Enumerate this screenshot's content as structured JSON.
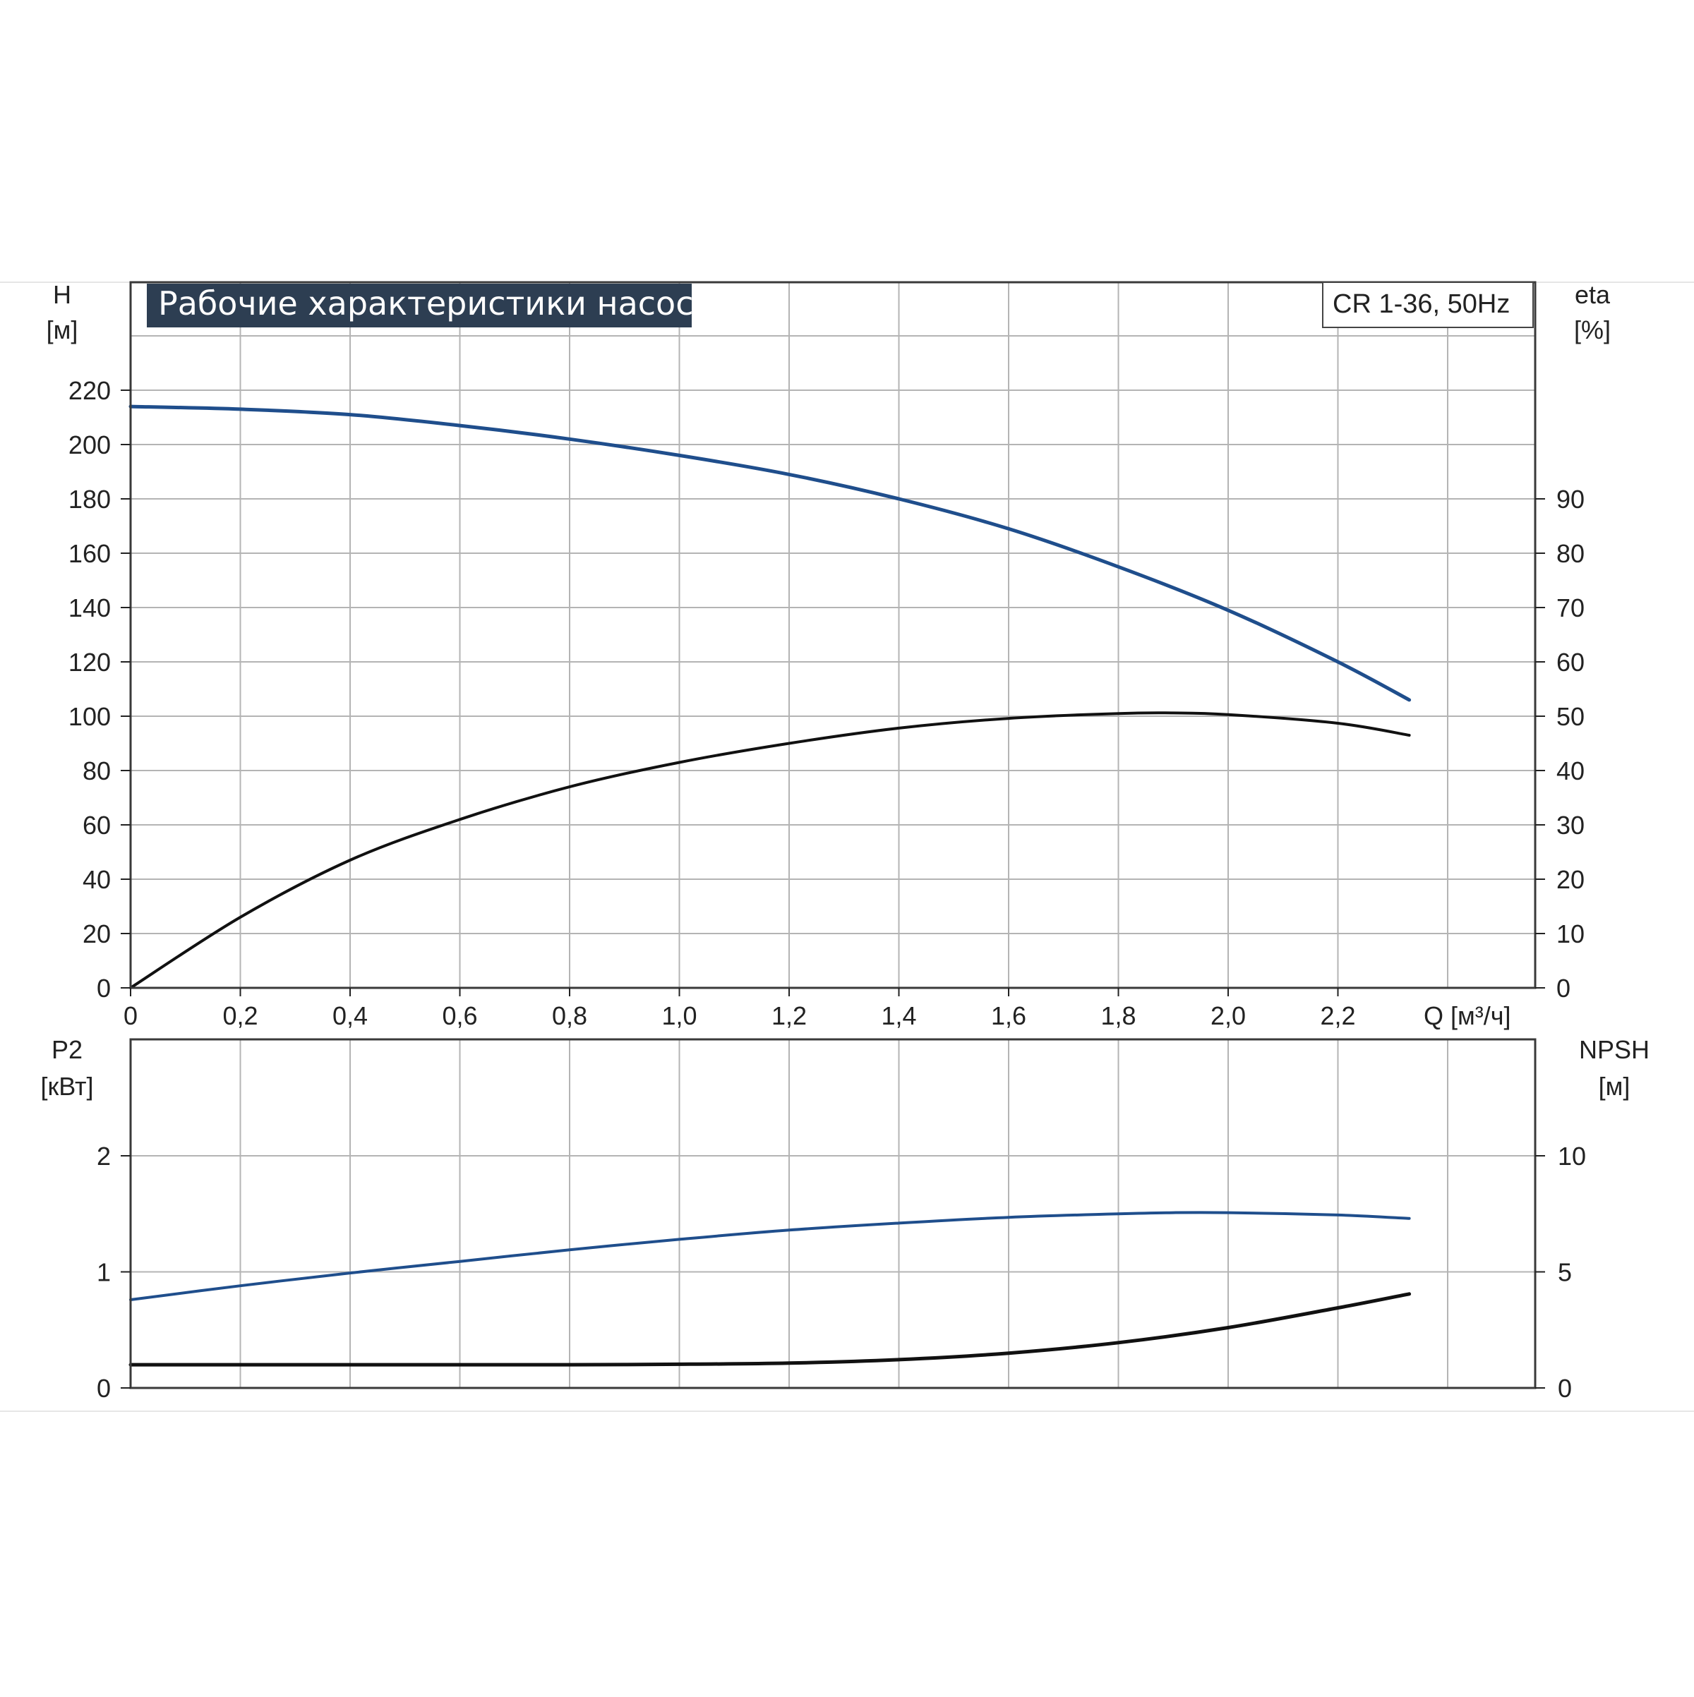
{
  "header": {
    "title": "Рабочие характеристики насоса",
    "model": "CR 1-36, 50Hz"
  },
  "colors": {
    "accent_blue": "#1f4e8c",
    "curve_black": "#111111",
    "grid": "#b4b4b4",
    "title_bg": "#2d3e52",
    "frame": "#3a3a3a"
  },
  "chart_data": [
    {
      "type": "line",
      "title": "Рабочие характеристики насоса",
      "subtitle": "CR 1-36, 50Hz",
      "xlabel": "Q [м³/ч]",
      "ylabel": "H\n[м]",
      "y2label": "eta\n[%]",
      "xlim": [
        0,
        2.56
      ],
      "ylim": [
        0,
        240
      ],
      "y2lim": [
        0,
        120
      ],
      "grid": true,
      "x_ticks": [
        "0",
        "0,2",
        "0,4",
        "0,6",
        "0,8",
        "1,0",
        "1,2",
        "1,4",
        "1,6",
        "1,8",
        "2,0",
        "2,2"
      ],
      "x_unit_label": "Q [м³/ч]",
      "y_ticks": [
        "0",
        "20",
        "40",
        "60",
        "80",
        "100",
        "120",
        "140",
        "160",
        "180",
        "200",
        "220"
      ],
      "y2_ticks": [
        "0",
        "10",
        "20",
        "30",
        "40",
        "50",
        "60",
        "70",
        "80",
        "90"
      ],
      "y_axis_title": [
        "H",
        "[м]"
      ],
      "y2_axis_title": [
        "eta",
        "[%]"
      ],
      "series": [
        {
          "axis": "left",
          "color": "#1f4e8c",
          "x": [
            0,
            0.2,
            0.4,
            0.6,
            0.8,
            1.0,
            1.2,
            1.4,
            1.6,
            1.8,
            2.0,
            2.2,
            2.33
          ],
          "values": [
            214,
            213,
            211,
            207,
            202,
            196,
            189,
            180,
            169,
            155,
            139,
            120,
            106
          ]
        },
        {
          "axis": "right",
          "color": "#111111",
          "x": [
            0,
            0.2,
            0.4,
            0.6,
            0.8,
            1.0,
            1.2,
            1.4,
            1.6,
            1.8,
            1.9,
            2.0,
            2.2,
            2.33
          ],
          "values": [
            0,
            13,
            23.5,
            31,
            37,
            41.5,
            45,
            47.8,
            49.6,
            50.5,
            50.6,
            50.3,
            48.7,
            46.5
          ]
        }
      ]
    },
    {
      "type": "line",
      "xlabel": "",
      "ylabel": "P2\n[кВт]",
      "y2label": "NPSH\n[м]",
      "xlim": [
        0,
        2.56
      ],
      "ylim": [
        0,
        3
      ],
      "y2lim": [
        0,
        15
      ],
      "grid": true,
      "y_ticks": [
        "0",
        "1",
        "2"
      ],
      "y2_ticks": [
        "0",
        "5",
        "10"
      ],
      "y_axis_title": [
        "P2",
        "[кВт]"
      ],
      "y2_axis_title": [
        "NPSH",
        "[м]"
      ],
      "series": [
        {
          "axis": "left",
          "color": "#1f4e8c",
          "x": [
            0,
            0.2,
            0.4,
            0.6,
            0.8,
            1.0,
            1.2,
            1.4,
            1.6,
            1.8,
            1.9,
            2.0,
            2.2,
            2.33
          ],
          "values": [
            0.76,
            0.88,
            0.99,
            1.09,
            1.19,
            1.28,
            1.36,
            1.42,
            1.47,
            1.5,
            1.51,
            1.51,
            1.49,
            1.46
          ]
        },
        {
          "axis": "right",
          "color": "#111111",
          "x": [
            0,
            0.2,
            0.4,
            0.6,
            0.8,
            1.0,
            1.2,
            1.4,
            1.6,
            1.8,
            2.0,
            2.2,
            2.33
          ],
          "values": [
            1.0,
            1.0,
            1.0,
            1.0,
            1.0,
            1.02,
            1.07,
            1.22,
            1.5,
            1.95,
            2.6,
            3.45,
            4.05
          ]
        }
      ]
    }
  ]
}
